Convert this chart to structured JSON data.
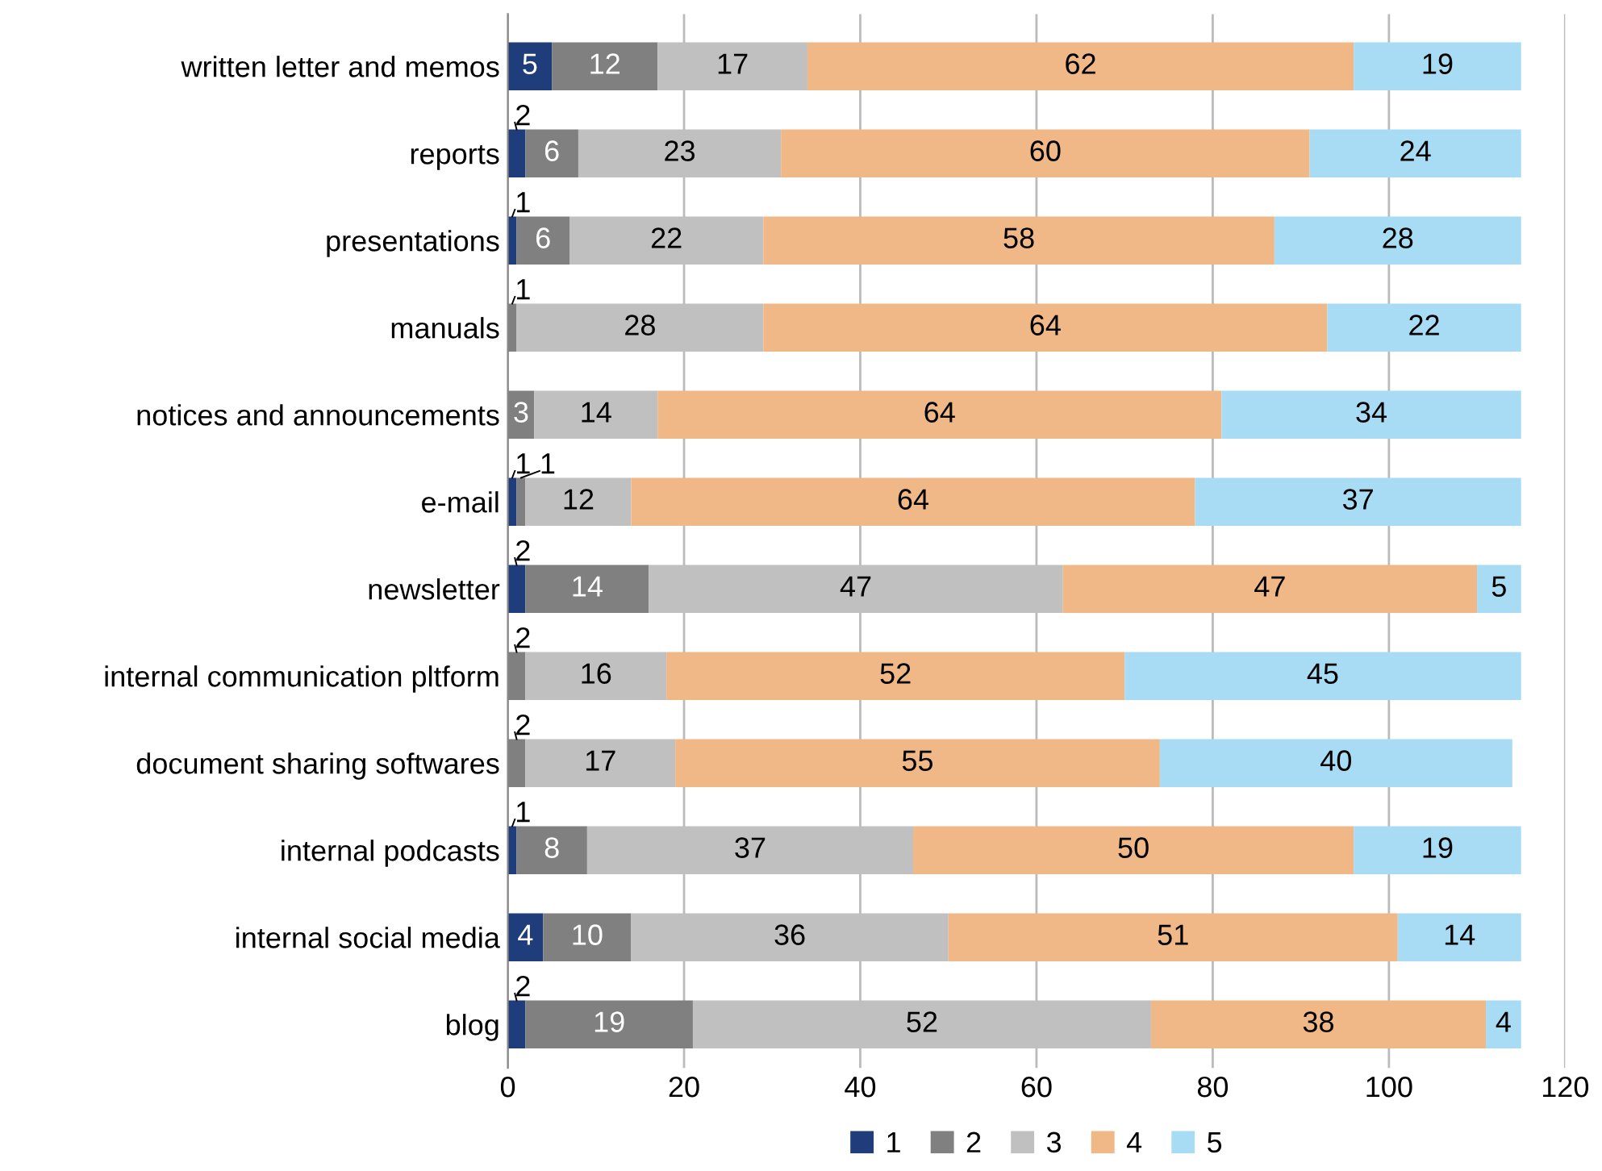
{
  "chart_data": {
    "type": "bar",
    "orientation": "horizontal",
    "stacked": true,
    "data_labels": true,
    "grid": "x",
    "legend": "bottom",
    "categories": [
      "written letter and memos",
      "reports",
      "presentations",
      "manuals",
      "notices and announcements",
      "e-mail",
      "newsletter",
      "internal communication pltform",
      "document sharing softwares",
      "internal podcasts",
      "internal social media",
      "blog"
    ],
    "series": [
      {
        "name": "1",
        "color": "#1f3d7a",
        "values": [
          5,
          2,
          1,
          null,
          null,
          1,
          2,
          null,
          null,
          1,
          4,
          2
        ]
      },
      {
        "name": "2",
        "color": "#808080",
        "values": [
          12,
          6,
          6,
          1,
          3,
          1,
          14,
          2,
          2,
          8,
          10,
          19
        ]
      },
      {
        "name": "3",
        "color": "#c0c0c0",
        "values": [
          17,
          23,
          22,
          28,
          14,
          12,
          47,
          16,
          17,
          37,
          36,
          52
        ]
      },
      {
        "name": "4",
        "color": "#f1b887",
        "values": [
          62,
          60,
          58,
          64,
          64,
          64,
          47,
          52,
          55,
          50,
          51,
          38
        ]
      },
      {
        "name": "5",
        "color": "#a8dcf5",
        "values": [
          19,
          24,
          28,
          22,
          34,
          37,
          5,
          45,
          40,
          19,
          14,
          4
        ]
      }
    ],
    "xlim": [
      0,
      120
    ],
    "xticks": [
      0,
      20,
      40,
      60,
      80,
      100,
      120
    ]
  }
}
